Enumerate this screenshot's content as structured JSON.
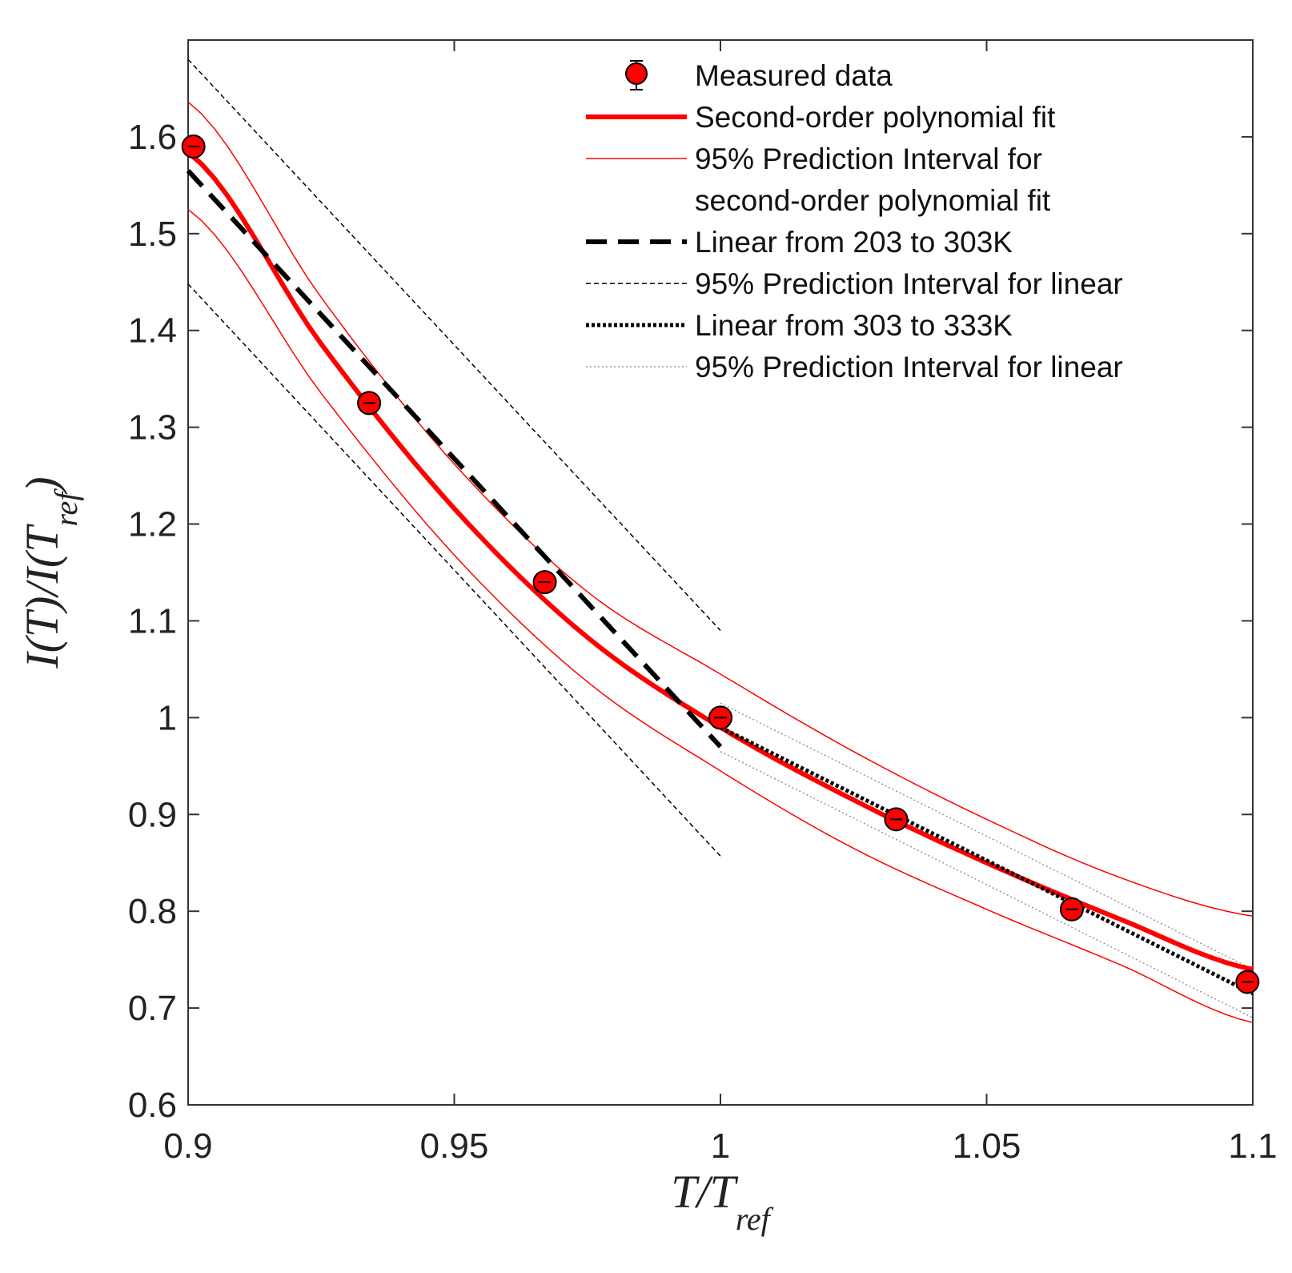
{
  "chart_data": {
    "type": "scatter",
    "title": "",
    "xlabel": {
      "main": "T/T",
      "sub": "ref"
    },
    "ylabel": {
      "main": "I(T)/I(T",
      "sub": "ref",
      "close": ")"
    },
    "xlim": [
      0.9,
      1.1
    ],
    "ylim": [
      0.6,
      1.7
    ],
    "xticks": [
      0.9,
      0.95,
      1.0,
      1.05,
      1.1
    ],
    "xtick_labels": [
      "0.9",
      "0.95",
      "1",
      "1.05",
      "1.1"
    ],
    "yticks": [
      0.6,
      0.7,
      0.8,
      0.9,
      1.0,
      1.1,
      1.2,
      1.3,
      1.4,
      1.5,
      1.6
    ],
    "ytick_labels": [
      "0.6",
      "0.7",
      "0.8",
      "0.9",
      "1",
      "1.1",
      "1.2",
      "1.3",
      "1.4",
      "1.5",
      "1.6"
    ],
    "grid": false,
    "legend_position": "top-right",
    "series": [
      {
        "name": "Measured data",
        "kind": "markers",
        "color": "#ff0000",
        "x": [
          0.901,
          0.934,
          0.967,
          1.0,
          1.033,
          1.066,
          1.099
        ],
        "y": [
          1.59,
          1.325,
          1.14,
          1.0,
          0.895,
          0.802,
          0.727
        ]
      },
      {
        "name": "Second-order polynomial fit",
        "kind": "curve",
        "color": "#ff0000",
        "style": "solid-thick",
        "x": [
          0.9,
          0.925,
          0.95,
          0.975,
          1.0,
          1.025,
          1.05,
          1.075,
          1.1
        ],
        "y": [
          1.584,
          1.386,
          1.216,
          1.083,
          0.99,
          0.915,
          0.85,
          0.792,
          0.74
        ]
      },
      {
        "name": "95% Prediction Interval for second-order polynomial fit",
        "legend_lines": [
          "95% Prediction Interval for",
          "second-order polynomial fit"
        ],
        "kind": "band",
        "color": "#ff0000",
        "style": "solid-thin",
        "x": [
          0.9,
          0.925,
          0.95,
          0.975,
          1.0,
          1.025,
          1.05,
          1.075,
          1.1
        ],
        "upper": [
          1.636,
          1.434,
          1.262,
          1.13,
          1.045,
          0.965,
          0.895,
          0.835,
          0.795
        ],
        "lower": [
          1.525,
          1.335,
          1.168,
          1.037,
          0.945,
          0.865,
          0.802,
          0.745,
          0.685
        ]
      },
      {
        "name": "Linear from 203 to 303K",
        "kind": "line",
        "color": "#000000",
        "style": "dashed-thick",
        "x": [
          0.9,
          1.0
        ],
        "y": [
          1.565,
          0.97
        ]
      },
      {
        "name": "95% Prediction Interval for linear",
        "kind": "band",
        "color": "#000000",
        "style": "dashed-thin",
        "x": [
          0.9,
          1.0
        ],
        "upper": [
          1.68,
          1.09
        ],
        "lower": [
          1.448,
          0.857
        ]
      },
      {
        "name": "Linear from 303 to 333K",
        "kind": "line",
        "color": "#000000",
        "style": "dotted-thick",
        "x": [
          1.0,
          1.1
        ],
        "y": [
          0.99,
          0.715
        ]
      },
      {
        "name": "95% Prediction Interval for linear",
        "kind": "band",
        "color": "#888888",
        "style": "dotted-thin",
        "x": [
          1.0,
          1.1
        ],
        "upper": [
          1.015,
          0.74
        ],
        "lower": [
          0.965,
          0.69
        ]
      }
    ]
  }
}
